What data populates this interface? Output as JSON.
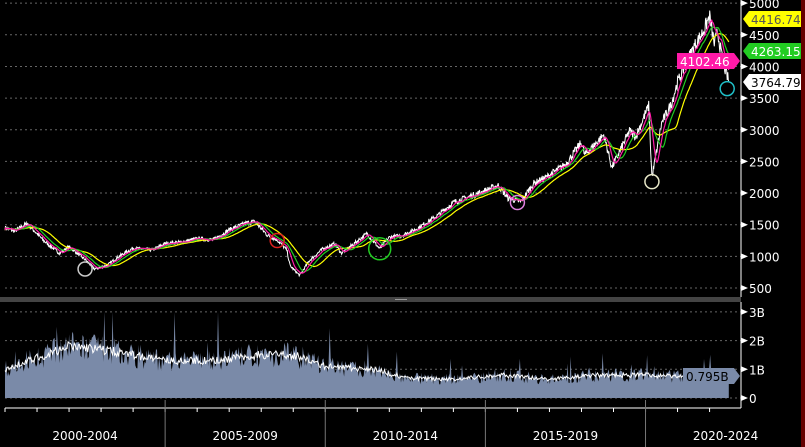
{
  "chart_data": [
    {
      "type": "line",
      "panel": "price",
      "y_ticks": [
        500,
        1000,
        1500,
        2000,
        2500,
        3000,
        3500,
        4000,
        4500,
        5000
      ],
      "ylim": [
        300,
        5000
      ],
      "xlim": [
        2000.0,
        2022.95
      ],
      "grid": true,
      "series": [
        {
          "role": "price",
          "color": "#ffffff",
          "points": [
            [
              2000.0,
              1450
            ],
            [
              2000.3,
              1400
            ],
            [
              2000.7,
              1520
            ],
            [
              2001.2,
              1250
            ],
            [
              2001.7,
              1050
            ],
            [
              2002.0,
              1150
            ],
            [
              2002.5,
              950
            ],
            [
              2002.8,
              800
            ],
            [
              2003.2,
              860
            ],
            [
              2003.5,
              980
            ],
            [
              2004.0,
              1130
            ],
            [
              2004.6,
              1100
            ],
            [
              2005.0,
              1200
            ],
            [
              2005.6,
              1230
            ],
            [
              2006.0,
              1280
            ],
            [
              2006.5,
              1260
            ],
            [
              2007.0,
              1420
            ],
            [
              2007.5,
              1520
            ],
            [
              2007.8,
              1550
            ],
            [
              2008.2,
              1330
            ],
            [
              2008.5,
              1260
            ],
            [
              2008.8,
              1100
            ],
            [
              2008.9,
              850
            ],
            [
              2009.2,
              700
            ],
            [
              2009.5,
              930
            ],
            [
              2009.9,
              1110
            ],
            [
              2010.3,
              1200
            ],
            [
              2010.5,
              1050
            ],
            [
              2010.9,
              1200
            ],
            [
              2011.3,
              1360
            ],
            [
              2011.7,
              1120
            ],
            [
              2012.0,
              1300
            ],
            [
              2012.4,
              1330
            ],
            [
              2012.8,
              1420
            ],
            [
              2013.0,
              1480
            ],
            [
              2013.5,
              1640
            ],
            [
              2014.0,
              1850
            ],
            [
              2014.8,
              2000
            ],
            [
              2015.4,
              2120
            ],
            [
              2015.7,
              1920
            ],
            [
              2016.1,
              1860
            ],
            [
              2016.5,
              2150
            ],
            [
              2016.9,
              2250
            ],
            [
              2017.5,
              2450
            ],
            [
              2018.0,
              2800
            ],
            [
              2018.1,
              2600
            ],
            [
              2018.7,
              2920
            ],
            [
              2018.95,
              2400
            ],
            [
              2019.5,
              2980
            ],
            [
              2019.7,
              2900
            ],
            [
              2020.1,
              3380
            ],
            [
              2020.2,
              2240
            ],
            [
              2020.5,
              3100
            ],
            [
              2020.8,
              3400
            ],
            [
              2021.0,
              3750
            ],
            [
              2021.5,
              4300
            ],
            [
              2021.8,
              4550
            ],
            [
              2022.0,
              4790
            ],
            [
              2022.15,
              4350
            ],
            [
              2022.25,
              4550
            ],
            [
              2022.4,
              4100
            ],
            [
              2022.6,
              3765
            ]
          ]
        },
        {
          "role": "moving-average-long",
          "color": "#ffff00",
          "window_years": 0.8,
          "last_value": "4416.74"
        },
        {
          "role": "moving-average-mid",
          "color": "#22cc22",
          "window_years": 0.4,
          "last_value": "4263.15"
        },
        {
          "role": "moving-average-short",
          "color": "#ff1aa8",
          "window_years": 0.2,
          "last_value": "4102.46"
        }
      ],
      "last_price": "3764.79",
      "annotations": [
        {
          "shape": "circle",
          "x": 2002.5,
          "y": 800,
          "color": "#cccccc"
        },
        {
          "shape": "circle",
          "x": 2008.5,
          "y": 1250,
          "color": "#e02020"
        },
        {
          "shape": "circle",
          "x": 2011.7,
          "y": 1120,
          "color": "#22cc22"
        },
        {
          "shape": "circle",
          "x": 2016.0,
          "y": 1850,
          "color": "#e080e0"
        },
        {
          "shape": "circle",
          "x": 2020.2,
          "y": 2180,
          "color": "#e8e8c8"
        },
        {
          "shape": "circle",
          "x": 2022.55,
          "y": 3650,
          "color": "#20c0c8"
        }
      ]
    },
    {
      "type": "area",
      "panel": "volume",
      "y_ticks": [
        "0",
        "1B",
        "2B",
        "3B"
      ],
      "y_tick_values": [
        0,
        1,
        2,
        3
      ],
      "ylim": [
        0,
        3
      ],
      "fill_color": "#7a8aa8",
      "levels": [
        [
          2000.0,
          1.0
        ],
        [
          2001.0,
          1.4
        ],
        [
          2002.0,
          1.8
        ],
        [
          2003.0,
          1.7
        ],
        [
          2004.0,
          1.5
        ],
        [
          2005.0,
          1.3
        ],
        [
          2006.5,
          1.3
        ],
        [
          2008.0,
          1.5
        ],
        [
          2009.0,
          1.5
        ],
        [
          2010.0,
          1.1
        ],
        [
          2011.5,
          1.0
        ],
        [
          2012.5,
          0.7
        ],
        [
          2014.0,
          0.65
        ],
        [
          2015.5,
          0.8
        ],
        [
          2017.0,
          0.65
        ],
        [
          2018.5,
          0.8
        ],
        [
          2020.0,
          0.8
        ],
        [
          2021.0,
          0.75
        ],
        [
          2022.6,
          0.8
        ]
      ],
      "last_value": "0.795B"
    }
  ],
  "x_labels": [
    "2000-2004",
    "2005-2009",
    "2010-2014",
    "2015-2019",
    "2020-2024"
  ],
  "x_label_centers": [
    2002.5,
    2007.5,
    2012.5,
    2017.5,
    2022.5
  ]
}
